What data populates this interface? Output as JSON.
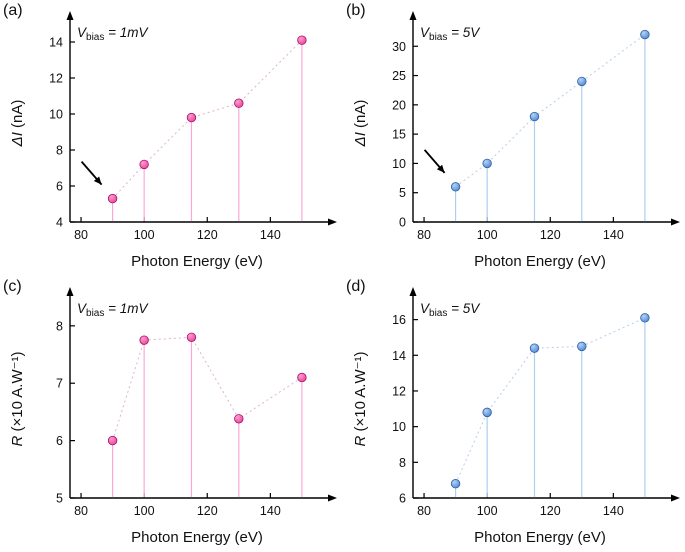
{
  "figure": {
    "background": "#ffffff"
  },
  "chart_data": [
    {
      "panel_label": "(a)",
      "type": "scatter",
      "bias_label": {
        "prefix": "V",
        "sub": "bias",
        "rest": " = 1mV"
      },
      "xlabel": "Photon Energy (eV)",
      "ylabel_parts": [
        {
          "text": "ΔI",
          "italic": true
        },
        {
          "text": " (nA)",
          "italic": false
        }
      ],
      "x": [
        90,
        100,
        115,
        130,
        150
      ],
      "values": [
        5.3,
        7.2,
        9.8,
        10.6,
        14.1
      ],
      "xlim": [
        76.5,
        157
      ],
      "ylim": [
        4,
        15
      ],
      "xticks": [
        80,
        100,
        120,
        140
      ],
      "yticks": [
        4,
        6,
        8,
        10,
        12,
        14
      ],
      "colors": {
        "point": "#e8459a",
        "point_light": "#ff9ed2",
        "edge": "#a81368",
        "stem": "#fba8d8",
        "dash": "#dfb3cf"
      },
      "arrow_annotation": true
    },
    {
      "panel_label": "(b)",
      "type": "scatter",
      "bias_label": {
        "prefix": "V",
        "sub": "bias",
        "rest": " = 5V"
      },
      "xlabel": "Photon Energy (eV)",
      "ylabel_parts": [
        {
          "text": "ΔI",
          "italic": true
        },
        {
          "text": " (nA)",
          "italic": false
        }
      ],
      "x": [
        90,
        100,
        115,
        130,
        150
      ],
      "values": [
        6,
        10,
        18,
        24,
        32
      ],
      "xlim": [
        76.5,
        157
      ],
      "ylim": [
        0,
        33.8
      ],
      "xticks": [
        80,
        100,
        120,
        140
      ],
      "yticks": [
        0,
        5,
        10,
        15,
        20,
        25,
        30
      ],
      "colors": {
        "point": "#4f8ad6",
        "point_light": "#b5d3f2",
        "edge": "#2d5fa8",
        "stem": "#aecfed",
        "dash": "#b5cfe8"
      },
      "arrow_annotation": true
    },
    {
      "panel_label": "(c)",
      "type": "scatter",
      "bias_label": {
        "prefix": "V",
        "sub": "bias",
        "rest": " = 1mV"
      },
      "xlabel": "Photon Energy (eV)",
      "ylabel_parts": [
        {
          "text": "R",
          "italic": true
        },
        {
          "text": " (×10 A.W⁻¹)",
          "italic": false
        }
      ],
      "x": [
        90,
        100,
        115,
        130,
        150
      ],
      "values": [
        6.0,
        7.75,
        7.8,
        6.38,
        7.1
      ],
      "xlim": [
        76.5,
        157
      ],
      "ylim": [
        5,
        8.45
      ],
      "xticks": [
        80,
        100,
        120,
        140
      ],
      "yticks": [
        5,
        6,
        7,
        8
      ],
      "colors": {
        "point": "#e8459a",
        "point_light": "#ff9ed2",
        "edge": "#a81368",
        "stem": "#fba8d8",
        "dash": "#dfb3cf"
      },
      "arrow_annotation": false
    },
    {
      "panel_label": "(d)",
      "type": "scatter",
      "bias_label": {
        "prefix": "V",
        "sub": "bias",
        "rest": " = 5V"
      },
      "xlabel": "Photon Energy (eV)",
      "ylabel_parts": [
        {
          "text": "R",
          "italic": true
        },
        {
          "text": " (×10 A.W⁻¹)",
          "italic": false
        }
      ],
      "x": [
        90,
        100,
        115,
        130,
        150
      ],
      "values": [
        6.8,
        10.8,
        14.4,
        14.5,
        16.1
      ],
      "xlim": [
        76.5,
        157
      ],
      "ylim": [
        6,
        17.1
      ],
      "xticks": [
        80,
        100,
        120,
        140
      ],
      "yticks": [
        6,
        8,
        10,
        12,
        14,
        16
      ],
      "colors": {
        "point": "#4f8ad6",
        "point_light": "#b5d3f2",
        "edge": "#2d5fa8",
        "stem": "#aecfed",
        "dash": "#b5cfe8"
      },
      "arrow_annotation": false
    }
  ]
}
